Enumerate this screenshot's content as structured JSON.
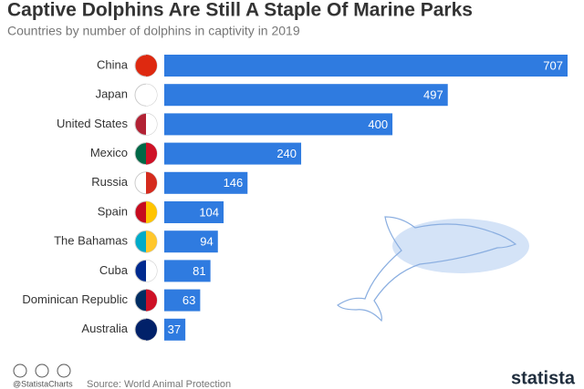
{
  "chart_data": {
    "type": "bar",
    "orientation": "horizontal",
    "title": "Captive Dolphins Are Still A Staple Of Marine Parks",
    "subtitle": "Countries by number of dolphins in captivity in 2019",
    "categories": [
      "China",
      "Japan",
      "United States",
      "Mexico",
      "Russia",
      "Spain",
      "The Bahamas",
      "Cuba",
      "Dominican Republic",
      "Australia"
    ],
    "values": [
      707,
      497,
      400,
      240,
      146,
      104,
      94,
      81,
      63,
      37
    ],
    "color": "#2f7be0"
  },
  "footer": {
    "handle": "@StatistaCharts",
    "source": "Source: World Animal Protection",
    "brand": "statista"
  }
}
